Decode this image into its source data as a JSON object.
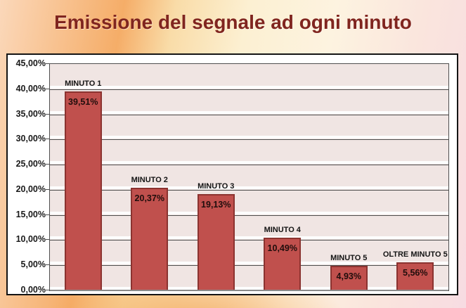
{
  "page": {
    "title": "Emissione del segnale ad ogni minuto"
  },
  "colors": {
    "title_text": "#80251f",
    "bar_fill": "#c0504d",
    "bar_border": "#8b3330",
    "plot_background": "#f0e5e3",
    "gridline": "#4e4e4e",
    "chart_background": "#ffffff",
    "chart_border": "#141414",
    "background_orange": "#f5ad68",
    "background_peach": "#fbd8ba",
    "background_pink": "#f7dce2"
  },
  "chart_data": {
    "type": "bar",
    "title": "Emissione del segnale ad ogni minuto",
    "categories": [
      "MINUTO 1",
      "MINUTO 2",
      "MINUTO 3",
      "MINUTO 4",
      "MINUTO 5",
      "OLTRE MINUTO 5"
    ],
    "values": [
      39.51,
      20.37,
      19.13,
      10.49,
      4.93,
      5.56
    ],
    "value_labels": [
      "39,51%",
      "20,37%",
      "19,13%",
      "10,49%",
      "4,93%",
      "5,56%"
    ],
    "xlabel": "",
    "ylabel": "",
    "ylim": [
      0,
      45
    ],
    "y_tick_step": 5,
    "y_tick_labels": [
      "45,00%",
      "40,00%",
      "35,00%",
      "30,00%",
      "25,00%",
      "20,00%",
      "15,00%",
      "10,00%",
      "5,00%",
      "0,00%"
    ],
    "grid": true,
    "legend": false,
    "decimal_separator": ","
  }
}
